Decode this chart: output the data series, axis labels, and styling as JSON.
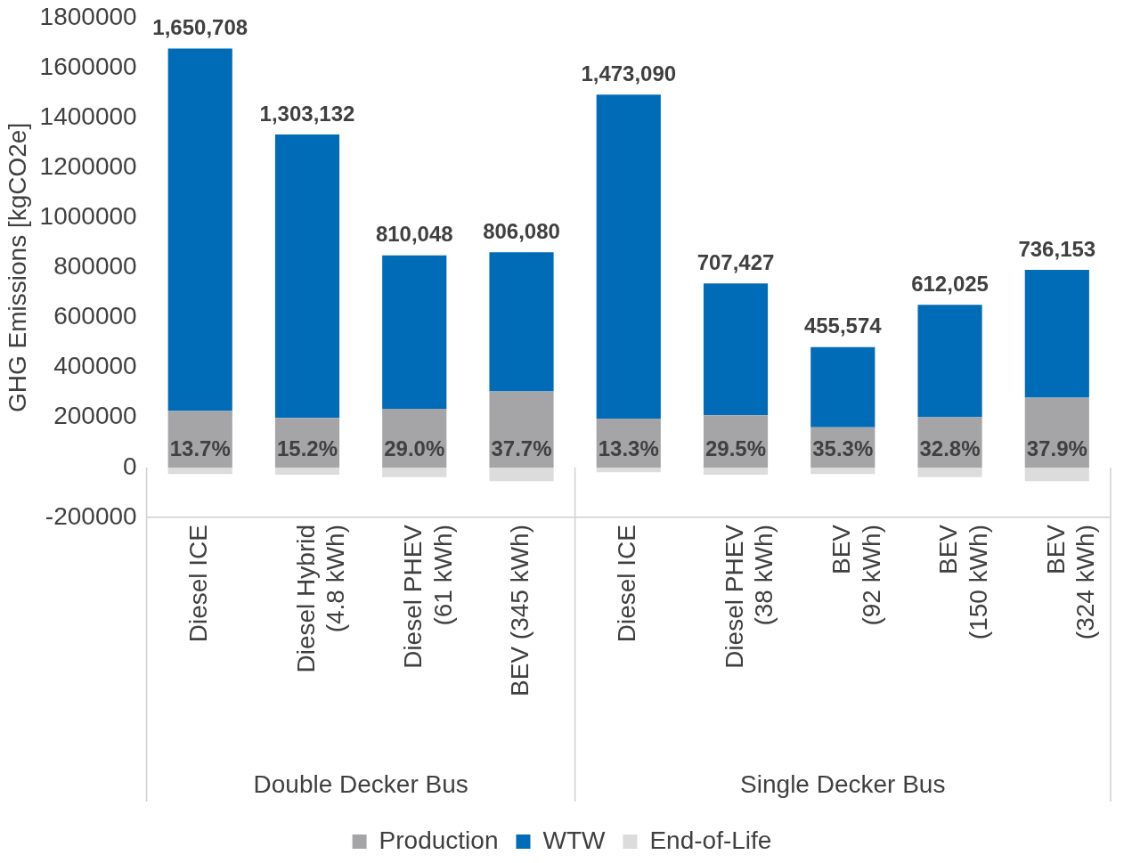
{
  "chart_data": {
    "type": "bar",
    "stacked": true,
    "ylabel": "GHG Emissions [kgCO2e]",
    "categories": [
      "Diesel ICE",
      "Diesel Hybrid\n(4.8 kWh)",
      "Diesel PHEV\n(61 kWh)",
      "BEV (345 kWh)",
      "Diesel ICE",
      "Diesel PHEV\n(38 kWh)",
      "BEV\n(92 kWh)",
      "BEV\n(150 kWh)",
      "BEV\n(324 kWh)"
    ],
    "series": [
      {
        "name": "Production",
        "color": "#a5a5a8",
        "values": [
          226000,
          198000,
          235000,
          304000,
          196000,
          209000,
          161000,
          201000,
          279000
        ]
      },
      {
        "name": "WTW",
        "color": "#006bb6",
        "values": [
          1450708,
          1134132,
          614048,
          557080,
          1296090,
          527427,
          320574,
          450025,
          512153
        ]
      },
      {
        "name": "End-of-Life",
        "color": "#dcdcdc",
        "values": [
          -26000,
          -29000,
          -39000,
          -55000,
          -19000,
          -29000,
          -26000,
          -39000,
          -55000
        ]
      }
    ],
    "totals": [
      "1,650,708",
      "1,303,132",
      "810,048",
      "806,080",
      "1,473,090",
      "707,427",
      "455,574",
      "612,025",
      "736,153"
    ],
    "annotations": [
      "Double Decker Bus",
      "Single Decker Bus",
      "13.7%",
      "15.2%",
      "29.0%",
      "37.7%",
      "13.3%",
      "29.5%",
      "35.3%",
      "32.8%",
      "37.9%"
    ],
    "ylim": [
      -200000,
      1800000
    ],
    "yticks": [
      -200000,
      0,
      200000,
      400000,
      600000,
      800000,
      1000000,
      1200000,
      1400000,
      1600000,
      1800000
    ],
    "grid": false,
    "legend": "bottom"
  }
}
